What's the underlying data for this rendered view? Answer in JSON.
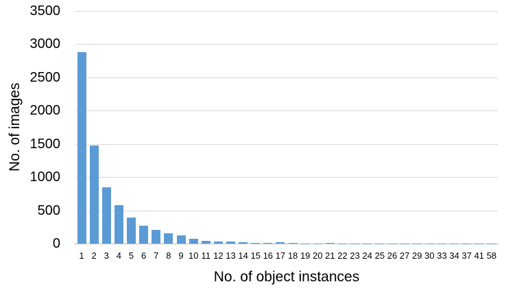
{
  "chart_data": {
    "type": "bar",
    "title": "",
    "xlabel": "No. of object instances",
    "ylabel": "No. of images",
    "categories": [
      "1",
      "2",
      "3",
      "4",
      "5",
      "6",
      "7",
      "8",
      "9",
      "10",
      "11",
      "12",
      "13",
      "14",
      "15",
      "16",
      "17",
      "18",
      "19",
      "20",
      "21",
      "22",
      "23",
      "24",
      "25",
      "26",
      "27",
      "29",
      "30",
      "33",
      "34",
      "37",
      "41",
      "58"
    ],
    "values": [
      2880,
      1480,
      850,
      575,
      390,
      265,
      205,
      150,
      125,
      70,
      45,
      35,
      28,
      24,
      12,
      10,
      20,
      6,
      5,
      4,
      12,
      3,
      3,
      2,
      2,
      2,
      2,
      1,
      1,
      1,
      1,
      1,
      1,
      1
    ],
    "ylim": [
      0,
      3500
    ],
    "yticks": [
      0,
      500,
      1000,
      1500,
      2000,
      2500,
      3000,
      3500
    ],
    "grid": "horizontal",
    "legend": "none",
    "bar_color": "#5b9bd5",
    "gridline_color": "#d9d9d9",
    "axis_line_color": "#bfbfbf",
    "text_color": "#000000"
  }
}
